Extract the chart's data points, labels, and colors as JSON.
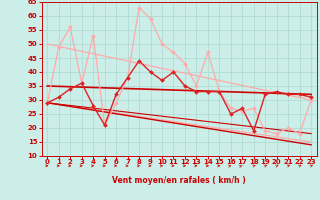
{
  "xlabel": "Vent moyen/en rafales ( km/h )",
  "xlim": [
    -0.5,
    23.5
  ],
  "ylim": [
    10,
    65
  ],
  "yticks": [
    10,
    15,
    20,
    25,
    30,
    35,
    40,
    45,
    50,
    55,
    60,
    65
  ],
  "xticks": [
    0,
    1,
    2,
    3,
    4,
    5,
    6,
    7,
    8,
    9,
    10,
    11,
    12,
    13,
    14,
    15,
    16,
    17,
    18,
    19,
    20,
    21,
    22,
    23
  ],
  "bg_color": "#cceee8",
  "grid_color": "#aad8d0",
  "series": [
    {
      "x": [
        0,
        1,
        2,
        3,
        4,
        5,
        6,
        7,
        8,
        9,
        10,
        11,
        12,
        13,
        14,
        15,
        16,
        17,
        18,
        19,
        20,
        21,
        22,
        23
      ],
      "y": [
        29,
        49,
        56,
        36,
        53,
        21,
        29,
        38,
        63,
        59,
        50,
        47,
        43,
        35,
        47,
        33,
        27,
        26,
        27,
        19,
        18,
        20,
        18,
        30
      ],
      "color": "#ffaaaa",
      "lw": 0.9,
      "marker": "D",
      "ms": 2.0
    },
    {
      "x": [
        0,
        23
      ],
      "y": [
        50,
        30
      ],
      "color": "#ffaaaa",
      "lw": 0.9,
      "marker": null,
      "ms": 0
    },
    {
      "x": [
        0,
        23
      ],
      "y": [
        29,
        15
      ],
      "color": "#ffaaaa",
      "lw": 0.9,
      "marker": null,
      "ms": 0
    },
    {
      "x": [
        0,
        1,
        2,
        3,
        4,
        5,
        6,
        7,
        8,
        9,
        10,
        11,
        12,
        13,
        14,
        15,
        16,
        17,
        18,
        19,
        20,
        21,
        22,
        23
      ],
      "y": [
        29,
        31,
        34,
        36,
        28,
        21,
        32,
        38,
        44,
        40,
        37,
        40,
        35,
        33,
        33,
        33,
        25,
        27,
        19,
        32,
        33,
        32,
        32,
        31
      ],
      "color": "#dd2222",
      "lw": 1.0,
      "marker": "D",
      "ms": 2.0
    },
    {
      "x": [
        0,
        23
      ],
      "y": [
        35,
        32
      ],
      "color": "#cc0000",
      "lw": 1.2,
      "marker": null,
      "ms": 0
    },
    {
      "x": [
        0,
        23
      ],
      "y": [
        29,
        14
      ],
      "color": "#cc0000",
      "lw": 1.0,
      "marker": null,
      "ms": 0
    },
    {
      "x": [
        0,
        23
      ],
      "y": [
        29,
        18
      ],
      "color": "#cc0000",
      "lw": 0.8,
      "marker": null,
      "ms": 0
    }
  ],
  "arrow_angles": [
    0,
    0,
    0,
    0,
    0,
    0,
    0,
    0,
    0,
    0,
    0,
    0,
    0,
    0,
    0,
    0,
    30,
    45,
    60,
    60,
    60,
    60,
    60,
    60
  ]
}
